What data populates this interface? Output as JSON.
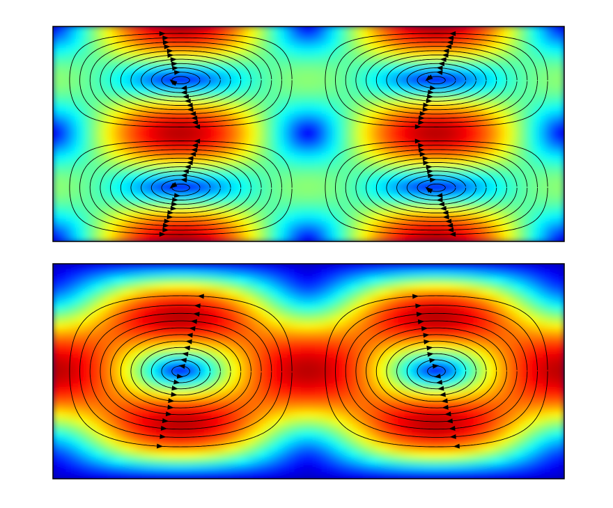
{
  "chart_data": [
    {
      "type": "streamplot",
      "colormap": "jet"
    },
    {
      "type": "streamplot",
      "colormap": "jet"
    }
  ]
}
